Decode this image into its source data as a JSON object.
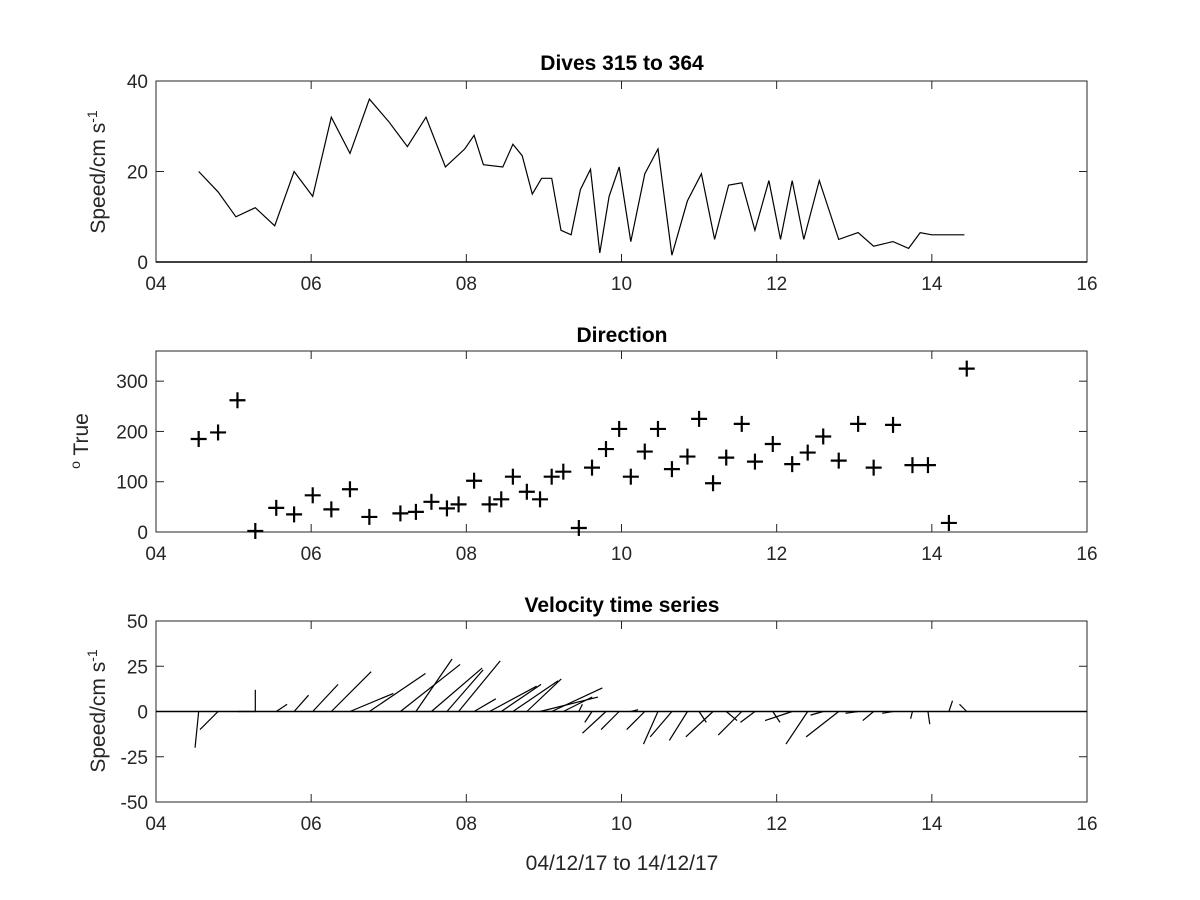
{
  "chart_data": [
    {
      "type": "line",
      "title": "Dives 315 to 364",
      "ylabel_main": "Speed/cm s",
      "ylabel_sup": "-1",
      "xlim": [
        4,
        16
      ],
      "ylim": [
        0,
        40
      ],
      "xticks": [
        4,
        6,
        8,
        10,
        12,
        14,
        16
      ],
      "xtick_labels": [
        "04",
        "06",
        "08",
        "10",
        "12",
        "14",
        "16"
      ],
      "yticks": [
        0,
        20,
        40
      ],
      "ytick_labels": [
        "0",
        "20",
        "40"
      ],
      "x": [
        4.55,
        4.8,
        5.03,
        5.28,
        5.53,
        5.78,
        6.02,
        6.26,
        6.5,
        6.75,
        7.0,
        7.24,
        7.48,
        7.73,
        7.98,
        8.1,
        8.22,
        8.47,
        8.6,
        8.72,
        8.85,
        8.97,
        9.1,
        9.22,
        9.35,
        9.47,
        9.6,
        9.72,
        9.84,
        9.97,
        10.12,
        10.3,
        10.47,
        10.65,
        10.85,
        11.03,
        11.2,
        11.38,
        11.55,
        11.72,
        11.9,
        12.05,
        12.2,
        12.35,
        12.55,
        12.8,
        13.05,
        13.25,
        13.5,
        13.7,
        13.85,
        14.0,
        14.2,
        14.42
      ],
      "y": [
        20,
        15.5,
        10,
        12,
        8,
        20,
        14.5,
        32,
        24,
        36,
        31,
        25.5,
        32,
        21,
        25,
        28,
        21.5,
        21,
        26,
        23.5,
        15,
        18.5,
        18.5,
        7,
        6,
        16,
        20.5,
        2,
        14.5,
        21,
        4.5,
        19.5,
        25,
        1.5,
        13.5,
        19.5,
        5,
        17,
        17.5,
        7,
        18,
        5,
        18,
        5,
        18,
        5,
        6.5,
        3.5,
        4.5,
        3,
        6.5,
        6,
        6,
        6
      ]
    },
    {
      "type": "scatter",
      "title": "Direction",
      "ylabel_sup": "o",
      "ylabel_main": " True",
      "xlim": [
        4,
        16
      ],
      "ylim": [
        0,
        360
      ],
      "xticks": [
        4,
        6,
        8,
        10,
        12,
        14,
        16
      ],
      "xtick_labels": [
        "04",
        "06",
        "08",
        "10",
        "12",
        "14",
        "16"
      ],
      "yticks": [
        0,
        100,
        200,
        300
      ],
      "ytick_labels": [
        "0",
        "100",
        "200",
        "300"
      ],
      "x": [
        4.55,
        4.8,
        5.05,
        5.28,
        5.55,
        5.78,
        6.02,
        6.26,
        6.5,
        6.75,
        7.15,
        7.35,
        7.55,
        7.75,
        7.9,
        8.1,
        8.3,
        8.45,
        8.6,
        8.78,
        8.95,
        9.1,
        9.25,
        9.45,
        9.62,
        9.8,
        9.97,
        10.12,
        10.3,
        10.47,
        10.65,
        10.85,
        11.0,
        11.18,
        11.35,
        11.55,
        11.72,
        11.95,
        12.2,
        12.4,
        12.6,
        12.8,
        13.05,
        13.25,
        13.5,
        13.75,
        13.95,
        14.22,
        14.45
      ],
      "y": [
        185,
        198,
        262,
        2,
        48,
        35,
        73,
        45,
        85,
        30,
        37,
        40,
        60,
        47,
        55,
        102,
        55,
        65,
        110,
        80,
        65,
        110,
        120,
        8,
        128,
        165,
        205,
        110,
        160,
        205,
        125,
        150,
        225,
        97,
        148,
        215,
        140,
        175,
        135,
        158,
        190,
        142,
        215,
        128,
        213,
        133,
        133,
        18,
        325
      ]
    },
    {
      "type": "stick",
      "title": "Velocity time series",
      "ylabel_main": "Speed/cm s",
      "ylabel_sup": "-1",
      "xlabel": "04/12/17 to 14/12/17",
      "xlim": [
        4,
        16
      ],
      "ylim": [
        -50,
        50
      ],
      "xticks": [
        4,
        6,
        8,
        10,
        12,
        14,
        16
      ],
      "xtick_labels": [
        "04",
        "06",
        "08",
        "10",
        "12",
        "14",
        "16"
      ],
      "yticks": [
        -50,
        -25,
        0,
        25,
        50
      ],
      "ytick_labels": [
        "-50",
        "-25",
        "0",
        "25",
        "50"
      ],
      "t": [
        4.55,
        4.8,
        5.05,
        5.28,
        5.55,
        5.78,
        6.02,
        6.26,
        6.5,
        6.75,
        7.15,
        7.35,
        7.55,
        7.75,
        7.9,
        8.1,
        8.3,
        8.45,
        8.6,
        8.78,
        8.95,
        9.1,
        9.25,
        9.45,
        9.62,
        9.8,
        9.97,
        10.12,
        10.3,
        10.47,
        10.65,
        10.85,
        11.0,
        11.18,
        11.35,
        11.55,
        11.72,
        11.95,
        12.2,
        12.4,
        12.6,
        12.8,
        13.05,
        13.25,
        13.5,
        13.75,
        13.95,
        14.22,
        14.45
      ],
      "u": [
        -2,
        -10,
        10,
        0,
        6,
        8,
        14,
        22,
        24,
        31,
        33,
        20,
        28,
        20,
        23,
        12,
        26,
        22,
        25,
        19,
        32,
        28,
        16,
        2,
        -4,
        -13,
        -10,
        4,
        -10,
        -8,
        -12,
        -10,
        4,
        -15,
        6,
        -13,
        -8,
        4,
        -15,
        -12,
        -7,
        -18,
        -7,
        -6,
        -6,
        -1,
        1,
        2,
        -4
      ],
      "v": [
        -20,
        -10,
        0,
        12,
        4,
        9,
        15,
        22,
        10,
        21,
        26,
        29,
        24,
        23,
        28,
        7,
        14,
        15,
        17,
        18,
        8,
        13,
        8,
        4,
        -6,
        -12,
        -10,
        1,
        -10,
        -18,
        -14,
        -16,
        -6,
        -14,
        -5,
        -13,
        -6,
        -6,
        -5,
        -18,
        -2,
        -14,
        -1,
        -5,
        -1,
        -4,
        -7,
        6,
        4
      ]
    }
  ]
}
